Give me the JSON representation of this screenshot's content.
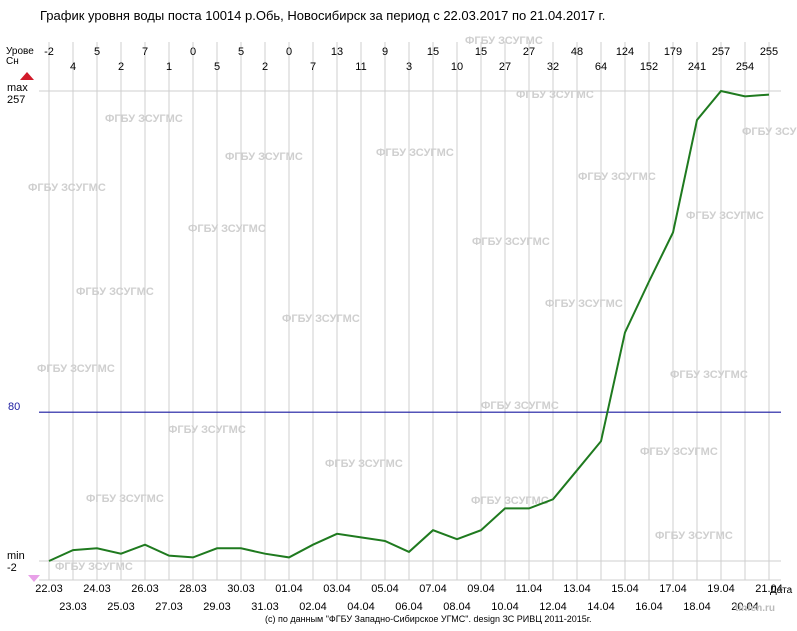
{
  "title": "График уровня воды поста 10014 р.Обь, Новосибирск за период с 22.03.2017 по 21.04.2017 г.",
  "footer": "(c) по данным \"ФГБУ Западно-Сибирское УГМС\". design ЗС РИВЦ 2011-2015г.",
  "site_mark": "tinfen.ru",
  "watermark_text": "ФГБУ ЗСУГМС",
  "y_header_line1": "Урове",
  "y_header_line2": "Сн",
  "x_header": "Дата",
  "max_label": "max",
  "max_value": "257",
  "min_label": "min",
  "min_value": "-2",
  "ref_label": "80",
  "colors": {
    "line": "#1f7a1f",
    "reference": "#1a1aa0",
    "grid": "#cfcfcf",
    "marker": "#d11a2a",
    "min_marker": "#e8a0e8"
  },
  "chart_data": {
    "type": "line",
    "title": "График уровня воды поста 10014 р.Обь, Новосибирск за период с 22.03.2017 по 21.04.2017 г.",
    "xlabel": "Дата",
    "ylabel": "Урове Сн",
    "ylim": [
      -2,
      257
    ],
    "grid": true,
    "reference_line": 80,
    "categories": [
      "22.03",
      "23.03",
      "24.03",
      "25.03",
      "26.03",
      "27.03",
      "28.03",
      "29.03",
      "30.03",
      "31.03",
      "01.04",
      "02.04",
      "03.04",
      "04.04",
      "05.04",
      "06.04",
      "07.04",
      "08.04",
      "09.04",
      "10.04",
      "11.04",
      "12.04",
      "13.04",
      "14.04",
      "15.04",
      "16.04",
      "17.04",
      "18.04",
      "19.04",
      "20.04",
      "21.04"
    ],
    "series": [
      {
        "values": [
          -2,
          4,
          5,
          2,
          7,
          1,
          0,
          5,
          5,
          2,
          0,
          7,
          13,
          11,
          9,
          3,
          15,
          10,
          15,
          27,
          27,
          32,
          48,
          64,
          124,
          152,
          179,
          241,
          257,
          254,
          255
        ]
      }
    ]
  }
}
